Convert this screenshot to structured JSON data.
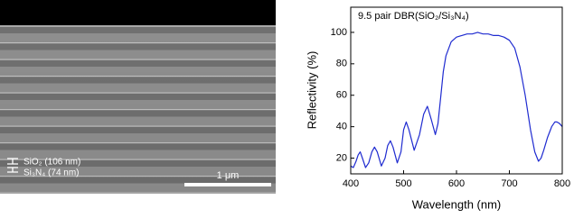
{
  "sem_image": {
    "layer_labels": [
      "SiO₂ (106 nm)",
      "Si₃N₄ (74 nm)"
    ],
    "scale_bar": "1 μm"
  },
  "chart_data": {
    "type": "line",
    "annotation": "9.5 pair DBR(SiO₂/Si₃N₄)",
    "x_label": "Wavelength (nm)",
    "y_label": "Reflectivity (%)",
    "x": [
      400,
      405,
      410,
      414,
      418,
      422,
      428,
      434,
      440,
      445,
      450,
      458,
      465,
      470,
      475,
      480,
      488,
      495,
      500,
      505,
      510,
      520,
      530,
      538,
      545,
      552,
      560,
      565,
      570,
      575,
      580,
      590,
      600,
      610,
      620,
      630,
      640,
      650,
      660,
      670,
      680,
      690,
      700,
      710,
      720,
      730,
      740,
      748,
      755,
      760,
      765,
      772,
      780,
      786,
      790,
      795,
      800
    ],
    "values": [
      15,
      14,
      18,
      22,
      24,
      20,
      14,
      17,
      24,
      27,
      24,
      15,
      20,
      28,
      31,
      27,
      17,
      24,
      38,
      43,
      38,
      25,
      35,
      48,
      53,
      45,
      35,
      42,
      58,
      75,
      85,
      94,
      97,
      98,
      99,
      99,
      100,
      99,
      99,
      98,
      98,
      97,
      95,
      90,
      78,
      60,
      38,
      24,
      18,
      20,
      25,
      33,
      40,
      43,
      43,
      42,
      40
    ],
    "color": "#1f2bd0",
    "xlim": [
      400,
      800
    ],
    "xticks": [
      400,
      500,
      600,
      700,
      800
    ],
    "ylim": [
      10,
      116
    ],
    "yticks": [
      20,
      40,
      60,
      80,
      100
    ]
  }
}
